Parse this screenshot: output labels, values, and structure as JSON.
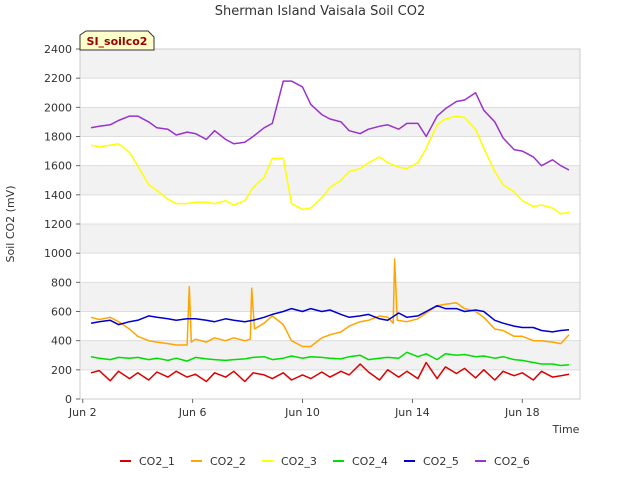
{
  "chart_data": {
    "type": "line",
    "title": "Sherman Island Vaisala Soil CO2",
    "site_label": "SI_soilco2",
    "xlabel": "Time",
    "ylabel": "Soil CO2 (mV)",
    "xlim": [
      1.9,
      20.1
    ],
    "ylim": [
      0,
      2400
    ],
    "x_ticks": [
      2,
      6,
      10,
      14,
      18
    ],
    "x_tick_labels": [
      "Jun 2",
      "Jun 6",
      "Jun 10",
      "Jun 14",
      "Jun 18"
    ],
    "y_ticks": [
      0,
      200,
      400,
      600,
      800,
      1000,
      1200,
      1400,
      1600,
      1800,
      2000,
      2200,
      2400
    ],
    "y_tick_labels": [
      "0",
      "200",
      "400",
      "600",
      "800",
      "1000",
      "1200",
      "1400",
      "1600",
      "1800",
      "2000",
      "2200",
      "2400"
    ],
    "grid": true,
    "legend_position": "bottom",
    "x_unit": "day of June",
    "series": [
      {
        "name": "CO2_1",
        "color": "#dd0000",
        "x": [
          2.3,
          2.6,
          3,
          3.3,
          3.7,
          4,
          4.4,
          4.7,
          5.1,
          5.4,
          5.8,
          6.1,
          6.5,
          6.8,
          7.2,
          7.5,
          7.9,
          8.2,
          8.6,
          8.9,
          9.3,
          9.6,
          10,
          10.3,
          10.7,
          11,
          11.4,
          11.7,
          12.1,
          12.4,
          12.8,
          13.1,
          13.5,
          13.8,
          14.2,
          14.5,
          14.9,
          15.2,
          15.6,
          15.9,
          16.3,
          16.6,
          17,
          17.3,
          17.7,
          18,
          18.4,
          18.7,
          19.1,
          19.4,
          19.7
        ],
        "y": [
          180,
          195,
          125,
          190,
          140,
          180,
          130,
          185,
          150,
          190,
          150,
          170,
          120,
          180,
          150,
          190,
          120,
          180,
          165,
          140,
          180,
          130,
          165,
          140,
          185,
          150,
          190,
          165,
          240,
          185,
          130,
          200,
          150,
          190,
          140,
          250,
          140,
          220,
          175,
          210,
          145,
          200,
          130,
          190,
          160,
          180,
          130,
          190,
          150,
          160,
          170
        ]
      },
      {
        "name": "CO2_2",
        "color": "#ffa500",
        "x": [
          2.3,
          2.6,
          3,
          3.3,
          3.7,
          4,
          4.4,
          4.7,
          5.1,
          5.4,
          5.8,
          5.88,
          5.95,
          6.1,
          6.5,
          6.8,
          7.2,
          7.5,
          7.9,
          8.1,
          8.15,
          8.25,
          8.6,
          8.9,
          9.3,
          9.6,
          10,
          10.3,
          10.7,
          11,
          11.4,
          11.7,
          12.1,
          12.4,
          12.8,
          13.1,
          13.3,
          13.35,
          13.45,
          13.8,
          14.2,
          14.5,
          14.9,
          15.2,
          15.6,
          15.9,
          16.3,
          16.6,
          17,
          17.3,
          17.7,
          18,
          18.4,
          18.7,
          19.1,
          19.4,
          19.7
        ],
        "y": [
          560,
          545,
          560,
          530,
          480,
          430,
          400,
          390,
          380,
          370,
          370,
          770,
          390,
          410,
          390,
          420,
          400,
          420,
          400,
          410,
          760,
          480,
          520,
          570,
          510,
          400,
          360,
          360,
          420,
          440,
          460,
          500,
          530,
          540,
          570,
          560,
          520,
          960,
          540,
          530,
          550,
          590,
          640,
          650,
          660,
          620,
          600,
          560,
          480,
          470,
          430,
          430,
          400,
          400,
          390,
          380,
          440
        ]
      },
      {
        "name": "CO2_3",
        "color": "#ffff00",
        "x": [
          2.3,
          2.6,
          3,
          3.3,
          3.7,
          4,
          4.4,
          4.7,
          5.1,
          5.4,
          5.8,
          6.1,
          6.5,
          6.8,
          7.2,
          7.5,
          7.9,
          8.2,
          8.6,
          8.9,
          9.3,
          9.6,
          10,
          10.3,
          10.7,
          11,
          11.4,
          11.7,
          12.1,
          12.4,
          12.8,
          13.1,
          13.5,
          13.8,
          14.2,
          14.5,
          14.9,
          15.2,
          15.6,
          15.9,
          16.3,
          16.6,
          17,
          17.3,
          17.7,
          18,
          18.4,
          18.7,
          19.1,
          19.4,
          19.7
        ],
        "y": [
          1740,
          1730,
          1740,
          1750,
          1690,
          1600,
          1470,
          1430,
          1370,
          1340,
          1340,
          1350,
          1350,
          1340,
          1360,
          1330,
          1360,
          1450,
          1520,
          1650,
          1650,
          1340,
          1300,
          1310,
          1380,
          1450,
          1500,
          1560,
          1580,
          1620,
          1660,
          1620,
          1590,
          1580,
          1620,
          1720,
          1880,
          1920,
          1940,
          1930,
          1850,
          1720,
          1560,
          1470,
          1420,
          1360,
          1320,
          1330,
          1310,
          1270,
          1280
        ]
      },
      {
        "name": "CO2_4",
        "color": "#00dd00",
        "x": [
          2.3,
          2.6,
          3,
          3.3,
          3.7,
          4,
          4.4,
          4.7,
          5.1,
          5.4,
          5.8,
          6.1,
          6.5,
          6.8,
          7.2,
          7.5,
          7.9,
          8.2,
          8.6,
          8.9,
          9.3,
          9.6,
          10,
          10.3,
          10.7,
          11,
          11.4,
          11.7,
          12.1,
          12.4,
          12.8,
          13.1,
          13.5,
          13.8,
          14.2,
          14.5,
          14.9,
          15.2,
          15.6,
          15.9,
          16.3,
          16.6,
          17,
          17.3,
          17.7,
          18,
          18.4,
          18.7,
          19.1,
          19.4,
          19.7
        ],
        "y": [
          290,
          280,
          270,
          285,
          280,
          285,
          270,
          280,
          265,
          280,
          260,
          285,
          275,
          270,
          265,
          270,
          275,
          285,
          290,
          270,
          280,
          295,
          280,
          290,
          285,
          280,
          275,
          290,
          300,
          270,
          280,
          285,
          280,
          320,
          290,
          310,
          270,
          310,
          300,
          305,
          290,
          295,
          280,
          290,
          270,
          265,
          250,
          240,
          240,
          230,
          235
        ]
      },
      {
        "name": "CO2_5",
        "color": "#0000cc",
        "x": [
          2.3,
          2.6,
          3,
          3.3,
          3.7,
          4,
          4.4,
          4.7,
          5.1,
          5.4,
          5.8,
          6.1,
          6.5,
          6.8,
          7.2,
          7.5,
          7.9,
          8.2,
          8.6,
          8.9,
          9.3,
          9.6,
          10,
          10.3,
          10.7,
          11,
          11.4,
          11.7,
          12.1,
          12.4,
          12.8,
          13.1,
          13.5,
          13.8,
          14.2,
          14.5,
          14.9,
          15.2,
          15.6,
          15.9,
          16.3,
          16.6,
          17,
          17.3,
          17.7,
          18,
          18.4,
          18.7,
          19.1,
          19.4,
          19.7
        ],
        "y": [
          520,
          530,
          540,
          510,
          530,
          540,
          570,
          560,
          550,
          540,
          550,
          550,
          540,
          530,
          550,
          540,
          530,
          540,
          560,
          580,
          600,
          620,
          600,
          620,
          600,
          610,
          580,
          560,
          570,
          580,
          550,
          540,
          590,
          560,
          570,
          600,
          640,
          620,
          620,
          600,
          610,
          600,
          540,
          520,
          500,
          490,
          490,
          470,
          460,
          470,
          475
        ]
      },
      {
        "name": "CO2_6",
        "color": "#9933cc",
        "x": [
          2.3,
          2.6,
          3,
          3.3,
          3.7,
          4,
          4.4,
          4.7,
          5.1,
          5.4,
          5.8,
          6.1,
          6.5,
          6.8,
          7.2,
          7.5,
          7.9,
          8.2,
          8.6,
          8.9,
          9.3,
          9.6,
          10,
          10.3,
          10.7,
          11,
          11.4,
          11.7,
          12.1,
          12.4,
          12.8,
          13.1,
          13.5,
          13.8,
          14.2,
          14.5,
          14.9,
          15.2,
          15.6,
          15.9,
          16.3,
          16.6,
          17,
          17.3,
          17.7,
          18,
          18.4,
          18.7,
          19.1,
          19.4,
          19.7
        ],
        "y": [
          1860,
          1870,
          1880,
          1910,
          1940,
          1940,
          1900,
          1860,
          1850,
          1810,
          1830,
          1820,
          1780,
          1840,
          1780,
          1750,
          1760,
          1800,
          1860,
          1890,
          2180,
          2180,
          2140,
          2020,
          1950,
          1920,
          1900,
          1840,
          1820,
          1850,
          1870,
          1880,
          1850,
          1890,
          1890,
          1800,
          1940,
          1990,
          2040,
          2050,
          2100,
          1980,
          1900,
          1790,
          1710,
          1700,
          1660,
          1600,
          1640,
          1600,
          1570
        ]
      }
    ]
  }
}
